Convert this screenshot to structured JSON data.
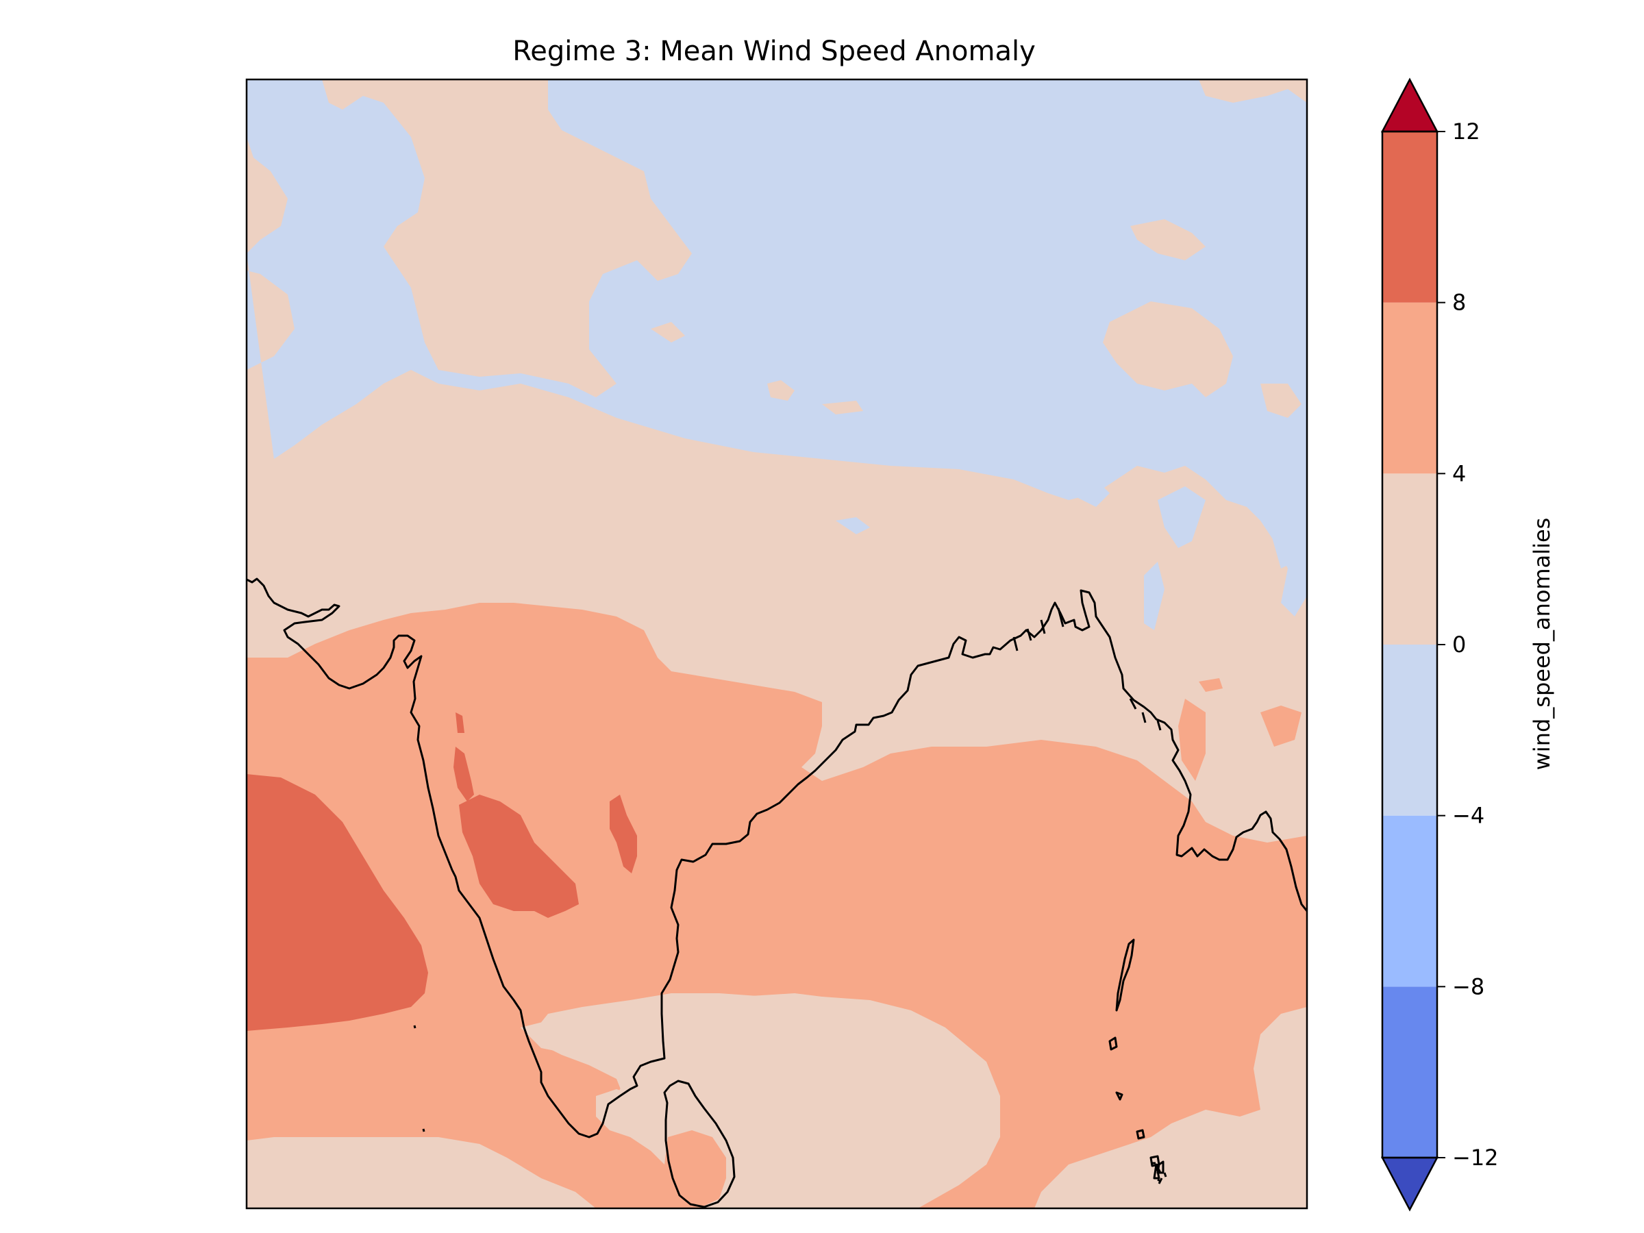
{
  "title": "Regime 3: Mean Wind Speed Anomaly",
  "colorbar": {
    "label": "wind_speed_anomalies",
    "ticks": [
      "−12",
      "−8",
      "−4",
      "0",
      "4",
      "8",
      "12"
    ],
    "levels": [
      -12,
      -8,
      -4,
      0,
      4,
      8,
      12
    ],
    "extend": "both",
    "band_colors": [
      "#6788ee",
      "#9abbff",
      "#c9d7f0",
      "#edd1c2",
      "#f7a889",
      "#e26952"
    ],
    "under_color": "#3b4cc0",
    "over_color": "#b40426"
  },
  "map": {
    "region": "South Asia, Bay of Bengal, Arabian Sea, Tibetan Plateau",
    "colormap": "coolwarm",
    "coastlines": true
  }
}
